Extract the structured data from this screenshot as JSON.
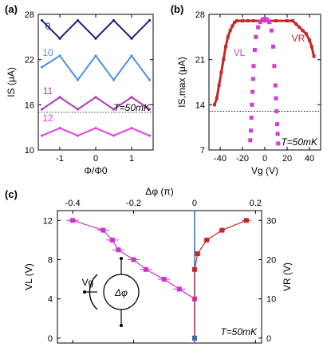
{
  "chart_data": [
    {
      "panel_label": "(a)",
      "type": "line",
      "xlabel": "Φ/Φ0",
      "ylabel": "IS (μA)",
      "xlim": [
        -1.6,
        1.6
      ],
      "ylim": [
        10,
        28
      ],
      "xticks": [
        "-1",
        "0",
        "1"
      ],
      "yticks": [
        "10",
        "16",
        "22",
        "28"
      ],
      "annotation": "T=50mK",
      "reference_line_y": 15,
      "series": [
        {
          "name": "0",
          "color": "#1a237e",
          "x": [
            -1.5,
            -1.0,
            -0.5,
            0.0,
            0.5,
            1.0,
            1.5
          ],
          "values": [
            27.2,
            24.8,
            27.2,
            24.8,
            27.2,
            24.8,
            27.2
          ]
        },
        {
          "name": "10",
          "color": "#4a90e2",
          "x": [
            -1.5,
            -1.0,
            -0.5,
            0.0,
            0.5,
            1.0,
            1.5
          ],
          "values": [
            21.0,
            22.5,
            19.3,
            22.5,
            19.3,
            22.5,
            19.3
          ]
        },
        {
          "name": "11",
          "color": "#b03ab8",
          "x": [
            -1.5,
            -1.0,
            -0.5,
            0.0,
            0.5,
            1.0,
            1.5
          ],
          "values": [
            15.4,
            17.0,
            15.4,
            17.0,
            15.4,
            17.0,
            15.4
          ]
        },
        {
          "name": "12",
          "color": "#e040e0",
          "x": [
            -1.5,
            -1.0,
            -0.5,
            0.0,
            0.5,
            1.0,
            1.5
          ],
          "values": [
            11.9,
            12.9,
            11.9,
            12.9,
            11.9,
            12.9,
            11.9
          ]
        }
      ],
      "series_labels": [
        "0",
        "10",
        "11",
        "12"
      ]
    },
    {
      "panel_label": "(b)",
      "type": "scatter",
      "xlabel": "Vg (V)",
      "ylabel": "IS,max (μA)",
      "xlim": [
        -50,
        50
      ],
      "ylim": [
        7,
        28
      ],
      "xticks": [
        "-40",
        "-20",
        "0",
        "20",
        "40"
      ],
      "yticks": [
        "7",
        "14",
        "21",
        "28"
      ],
      "annotation": "T=50mK",
      "reference_line_y": 13,
      "series": [
        {
          "name": "VR",
          "color": "#c62828",
          "x": [
            -45,
            -43,
            -41,
            -39,
            -37,
            -35,
            -33,
            -31,
            -29,
            -27,
            -25,
            -20,
            -15,
            -10,
            0,
            10,
            20,
            25,
            28,
            31,
            34,
            37,
            40,
            42,
            44
          ],
          "values": [
            14,
            15,
            17,
            19,
            21,
            23,
            24.5,
            25.5,
            26.2,
            26.8,
            27,
            27,
            27,
            27,
            27,
            27,
            27,
            27,
            26.5,
            26,
            25.5,
            25,
            24,
            23,
            21.5
          ]
        },
        {
          "name": "VL",
          "color": "#d63ad6",
          "x": [
            -13,
            -12.5,
            -12,
            -11.5,
            -11,
            -10.5,
            -10,
            -9,
            -8,
            -6,
            -4,
            -2,
            0,
            2,
            4,
            6,
            7.5,
            8.5,
            9.5,
            10,
            10.5,
            11,
            11.5,
            12
          ],
          "values": [
            8.5,
            10,
            12,
            14,
            16,
            18,
            20,
            22.5,
            24.5,
            26,
            26.8,
            27.2,
            27.3,
            27.2,
            26.8,
            25.5,
            23,
            20,
            17,
            15,
            13,
            11,
            9.5,
            8
          ]
        }
      ],
      "series_labels": [
        "VL",
        "VR"
      ]
    },
    {
      "panel_label": "(c)",
      "type": "scatter",
      "xlabel": "Δφ (π)",
      "ylabel_left": "VL (V)",
      "ylabel_right": "VR (V)",
      "xlim": [
        -0.45,
        0.22
      ],
      "ylim_left": [
        -0.5,
        13
      ],
      "ylim_right": [
        -1.25,
        32.5
      ],
      "xticks": [
        "-0.4",
        "-0.2",
        "0",
        "0.2"
      ],
      "yticks_left": [
        "0",
        "4",
        "8",
        "12"
      ],
      "yticks_right": [
        "0",
        "10",
        "20",
        "30"
      ],
      "annotation": "T=50mK",
      "diagram_labels": {
        "gate": "Vg",
        "phase": "Δφ"
      },
      "series": [
        {
          "name": "VL",
          "color": "#cc33cc",
          "x": [
            -0.4,
            -0.3,
            -0.27,
            -0.25,
            -0.2,
            -0.16,
            -0.1,
            -0.05,
            0.0
          ],
          "values": [
            12,
            11,
            10,
            9,
            8,
            7,
            6,
            5,
            4
          ],
          "xerr": [
            0.02,
            0.02,
            0.02,
            0.02,
            0.02,
            0.02,
            0.02,
            0.02,
            0.0
          ]
        },
        {
          "name": "VR",
          "color": "#c62828",
          "x": [
            0.0,
            0.0,
            0.01,
            0.04,
            0.09,
            0.17
          ],
          "values": [
            0,
            17.5,
            21.5,
            25,
            27.5,
            30
          ],
          "xerr": [
            0.0,
            0.0,
            0.01,
            0.01,
            0.01,
            0.015
          ]
        },
        {
          "name": "zero",
          "color": "#3a6ea5",
          "x": [
            0.0,
            0.0
          ],
          "values": [
            0,
            0
          ]
        }
      ]
    }
  ]
}
